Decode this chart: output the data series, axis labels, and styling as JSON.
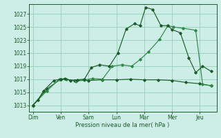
{
  "xlabel": "Pression niveau de la mer( hPa )",
  "bg_color": "#cceee6",
  "grid_color": "#99ccbb",
  "line_color_dark": "#1a5c28",
  "line_color_light": "#2d8a45",
  "days": [
    "Dim",
    "Ven",
    "Sam",
    "Lun",
    "Mar",
    "Mer",
    "Jeu"
  ],
  "day_positions": [
    0,
    1,
    2,
    3,
    4,
    5,
    6
  ],
  "yticks": [
    1013,
    1015,
    1017,
    1019,
    1021,
    1023,
    1025,
    1027
  ],
  "ylim": [
    1012.0,
    1028.5
  ],
  "xlim": [
    -0.15,
    6.6
  ],
  "s1_x": [
    0.0,
    0.18,
    0.38,
    0.75,
    1.0,
    1.15,
    1.35,
    1.6,
    1.85,
    2.1,
    2.4,
    2.75,
    3.05,
    3.35,
    3.65,
    3.85,
    4.05,
    4.3,
    4.6,
    4.85,
    5.0,
    5.3,
    5.6,
    5.85,
    6.1,
    6.4
  ],
  "s1_y": [
    1013.0,
    1013.8,
    1015.2,
    1016.8,
    1017.0,
    1017.1,
    1016.8,
    1016.9,
    1017.0,
    1018.8,
    1019.2,
    1019.0,
    1021.0,
    1024.7,
    1025.5,
    1025.2,
    1028.0,
    1027.7,
    1025.2,
    1025.2,
    1024.6,
    1024.1,
    1020.3,
    1018.0,
    1019.0,
    1018.2
  ],
  "s2_x": [
    0.0,
    0.5,
    0.95,
    1.2,
    1.55,
    1.85,
    2.15,
    2.5,
    2.85,
    3.2,
    3.55,
    3.85,
    4.15,
    4.55,
    4.85,
    5.05,
    5.4,
    5.85,
    6.1,
    6.4
  ],
  "s2_y": [
    1013.0,
    1015.2,
    1017.0,
    1017.0,
    1016.7,
    1016.9,
    1017.1,
    1017.0,
    1019.0,
    1019.2,
    1019.0,
    1020.0,
    1021.2,
    1023.1,
    1025.2,
    1025.0,
    1024.8,
    1024.5,
    1016.2,
    1016.0
  ],
  "s3_x": [
    0.0,
    0.5,
    1.0,
    1.5,
    2.0,
    2.5,
    3.0,
    3.5,
    4.0,
    4.5,
    5.0,
    5.5,
    6.0,
    6.4
  ],
  "s3_y": [
    1013.0,
    1015.5,
    1017.0,
    1016.8,
    1016.8,
    1016.9,
    1016.9,
    1017.0,
    1016.9,
    1016.9,
    1016.8,
    1016.5,
    1016.3,
    1016.0
  ]
}
